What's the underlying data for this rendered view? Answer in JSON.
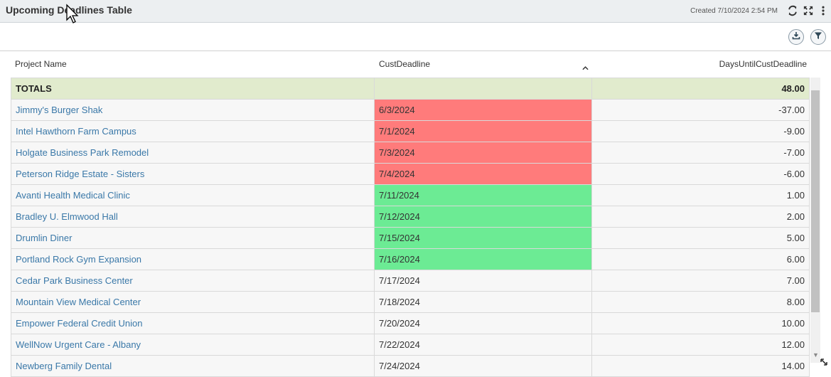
{
  "header": {
    "title": "Upcoming Deadlines Table",
    "created": "Created 7/10/2024 2:54 PM"
  },
  "icons": {
    "refresh": "refresh-icon",
    "expand": "expand-icon",
    "more": "more-vertical-icon",
    "download": "download-icon",
    "filter": "filter-icon",
    "sort": "sort-up-icon",
    "resize": "resize-icon"
  },
  "columns": {
    "project": "Project Name",
    "deadline": "CustDeadline",
    "days": "DaysUntilCustDeadline"
  },
  "totals": {
    "label": "TOTALS",
    "deadline": "",
    "days": "48.00"
  },
  "colors": {
    "overdue": "#ff7b7b",
    "upcoming": "#6ceb94",
    "neutral": "#f7f7f7",
    "totals": "#e1ebcd",
    "link": "#3a78a8"
  },
  "rows": [
    {
      "project": "Jimmy's Burger Shak",
      "deadline": "6/3/2024",
      "days": "-37.00",
      "status": "overdue"
    },
    {
      "project": "Intel Hawthorn Farm Campus",
      "deadline": "7/1/2024",
      "days": "-9.00",
      "status": "overdue"
    },
    {
      "project": "Holgate Business Park Remodel",
      "deadline": "7/3/2024",
      "days": "-7.00",
      "status": "overdue"
    },
    {
      "project": "Peterson Ridge Estate - Sisters",
      "deadline": "7/4/2024",
      "days": "-6.00",
      "status": "overdue"
    },
    {
      "project": "Avanti Health Medical Clinic",
      "deadline": "7/11/2024",
      "days": "1.00",
      "status": "upcoming"
    },
    {
      "project": "Bradley U. Elmwood Hall",
      "deadline": "7/12/2024",
      "days": "2.00",
      "status": "upcoming"
    },
    {
      "project": "Drumlin Diner",
      "deadline": "7/15/2024",
      "days": "5.00",
      "status": "upcoming"
    },
    {
      "project": "Portland Rock Gym Expansion",
      "deadline": "7/16/2024",
      "days": "6.00",
      "status": "upcoming"
    },
    {
      "project": "Cedar Park Business Center",
      "deadline": "7/17/2024",
      "days": "7.00",
      "status": "neutral"
    },
    {
      "project": "Mountain View Medical Center",
      "deadline": "7/18/2024",
      "days": "8.00",
      "status": "neutral"
    },
    {
      "project": "Empower Federal Credit Union",
      "deadline": "7/20/2024",
      "days": "10.00",
      "status": "neutral"
    },
    {
      "project": "WellNow Urgent Care - Albany",
      "deadline": "7/22/2024",
      "days": "12.00",
      "status": "neutral"
    },
    {
      "project": "Newberg Family Dental",
      "deadline": "7/24/2024",
      "days": "14.00",
      "status": "neutral"
    }
  ]
}
